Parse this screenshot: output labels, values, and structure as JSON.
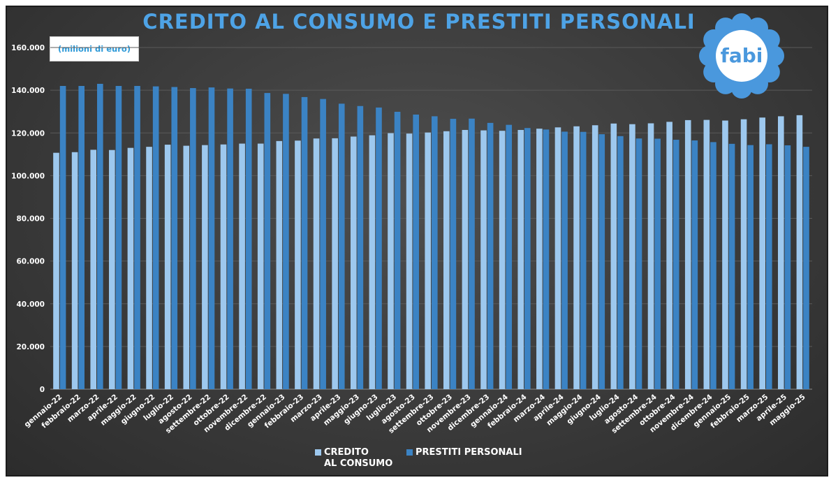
{
  "title": "CREDITO AL CONSUMO E PRESTITI PERSONALI",
  "unit_label": "(milioni di euro)",
  "logo": {
    "text": "fabi",
    "colors": {
      "petal": "#4a98dd",
      "center": "#ffffff",
      "text": "#4a98dd"
    }
  },
  "colors": {
    "credito": "#9dc8ee",
    "prestiti": "#3b83c4",
    "title": "#4ea3e6",
    "background": "#3f3f3f"
  },
  "chart_data": {
    "type": "bar",
    "title": "CREDITO AL CONSUMO E PRESTITI PERSONALI",
    "ylabel": "(milioni di euro)",
    "xlabel": "",
    "ylim": [
      0,
      160000
    ],
    "yticks": [
      "0",
      "20.000",
      "40.000",
      "60.000",
      "80.000",
      "100.000",
      "120.000",
      "140.000",
      "160.000"
    ],
    "grid": true,
    "legend": "bottom",
    "categories": [
      "gennaio-22",
      "febbraio-22",
      "marzo-22",
      "aprile-22",
      "maggio-22",
      "giugno-22",
      "luglio-22",
      "agosto-22",
      "settembre-22",
      "ottobre-22",
      "novembre-22",
      "dicembre-22",
      "gennaio-23",
      "febbraio-23",
      "marzo-23",
      "aprile-23",
      "maggio-23",
      "giugno-23",
      "luglio-23",
      "agosto-23",
      "settembre-23",
      "ottobre-23",
      "novembre-23",
      "dicembre-23",
      "gennaio-24",
      "febbraio-24",
      "marzo-24",
      "aprile-24",
      "maggio-24",
      "giugno-24",
      "luglio-24",
      "agosto-24",
      "settembre-24",
      "ottobre-24",
      "novembre-24",
      "dicembre-24",
      "gennaio-25",
      "febbraio-25",
      "marzo-25",
      "aprile-25",
      "maggio-25"
    ],
    "series": [
      {
        "name": "CREDITO\nAL CONSUMO",
        "color": "#9dc8ee",
        "values": [
          110700,
          111000,
          112100,
          112000,
          113000,
          113500,
          114500,
          114000,
          114300,
          114600,
          115000,
          115000,
          116200,
          116400,
          117400,
          117500,
          118300,
          118900,
          119900,
          119700,
          120200,
          120800,
          121400,
          121200,
          121000,
          121400,
          122000,
          122600,
          123100,
          123600,
          124400,
          124100,
          124500,
          125200,
          126000,
          126100,
          125800,
          126400,
          127200,
          127800,
          128300
        ]
      },
      {
        "name": "PRESTITI PERSONALI",
        "color": "#3b83c4",
        "values": [
          142000,
          142000,
          143000,
          142000,
          142000,
          141800,
          141500,
          141000,
          141300,
          140800,
          140700,
          138700,
          138300,
          136800,
          135900,
          133700,
          132600,
          131900,
          129900,
          128600,
          127800,
          126600,
          126700,
          124700,
          123800,
          122300,
          121600,
          120600,
          120500,
          119400,
          118500,
          117400,
          117300,
          116800,
          116500,
          115700,
          114900,
          114300,
          114700,
          114200,
          113500
        ]
      }
    ]
  }
}
